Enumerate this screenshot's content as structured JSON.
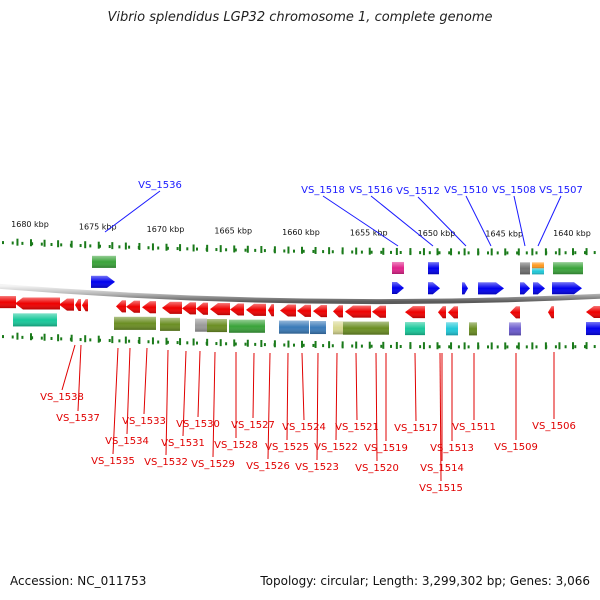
{
  "title": "Vibrio splendidus LGP32 chromosome 1, complete genome",
  "accession": "Accession: NC_011753",
  "summary": "Topology: circular; Length: 3,299,302 bp; Genes: 3,066",
  "colors": {
    "forward_label": "#1a1aff",
    "reverse_label": "#e00000",
    "forward_gene": "#0000ee",
    "reverse_gene": "#ee0000",
    "tick": "#1a7a1a",
    "backbone": "#8a8a8a"
  },
  "scale_ticks": [
    {
      "pos_kbp": 1680,
      "label": "1680 kbp"
    },
    {
      "pos_kbp": 1675,
      "label": "1675 kbp"
    },
    {
      "pos_kbp": 1670,
      "label": "1670 kbp"
    },
    {
      "pos_kbp": 1665,
      "label": "1665 kbp"
    },
    {
      "pos_kbp": 1660,
      "label": "1660 kbp"
    },
    {
      "pos_kbp": 1655,
      "label": "1655 kbp"
    },
    {
      "pos_kbp": 1650,
      "label": "1650 kbp"
    },
    {
      "pos_kbp": 1645,
      "label": "1645 kbp"
    },
    {
      "pos_kbp": 1640,
      "label": "1640 kbp"
    }
  ],
  "forward_gene_labels": [
    "VS_1536",
    "VS_1518",
    "VS_1516",
    "VS_1512",
    "VS_1510",
    "VS_1508",
    "VS_1507"
  ],
  "reverse_gene_labels": [
    "VS_1538",
    "VS_1537",
    "VS_1535",
    "VS_1534",
    "VS_1533",
    "VS_1532",
    "VS_1531",
    "VS_1530",
    "VS_1529",
    "VS_1528",
    "VS_1527",
    "VS_1526",
    "VS_1525",
    "VS_1524",
    "VS_1523",
    "VS_1522",
    "VS_1521",
    "VS_1520",
    "VS_1519",
    "VS_1517",
    "VS_1515",
    "VS_1514",
    "VS_1513",
    "VS_1511",
    "VS_1509",
    "VS_1506"
  ],
  "cog_colors": {
    "green": "#3aa33a",
    "olive": "#6b8e23",
    "teal": "#18c89a",
    "grey": "#9a9a9a",
    "steelblue": "#3a7ab8",
    "khaki": "#d8d890",
    "magenta": "#e0228a",
    "cyan": "#20c8d8",
    "orange": "#ff9a20",
    "dimgrey": "#707070",
    "slateblue": "#6a5acd"
  }
}
